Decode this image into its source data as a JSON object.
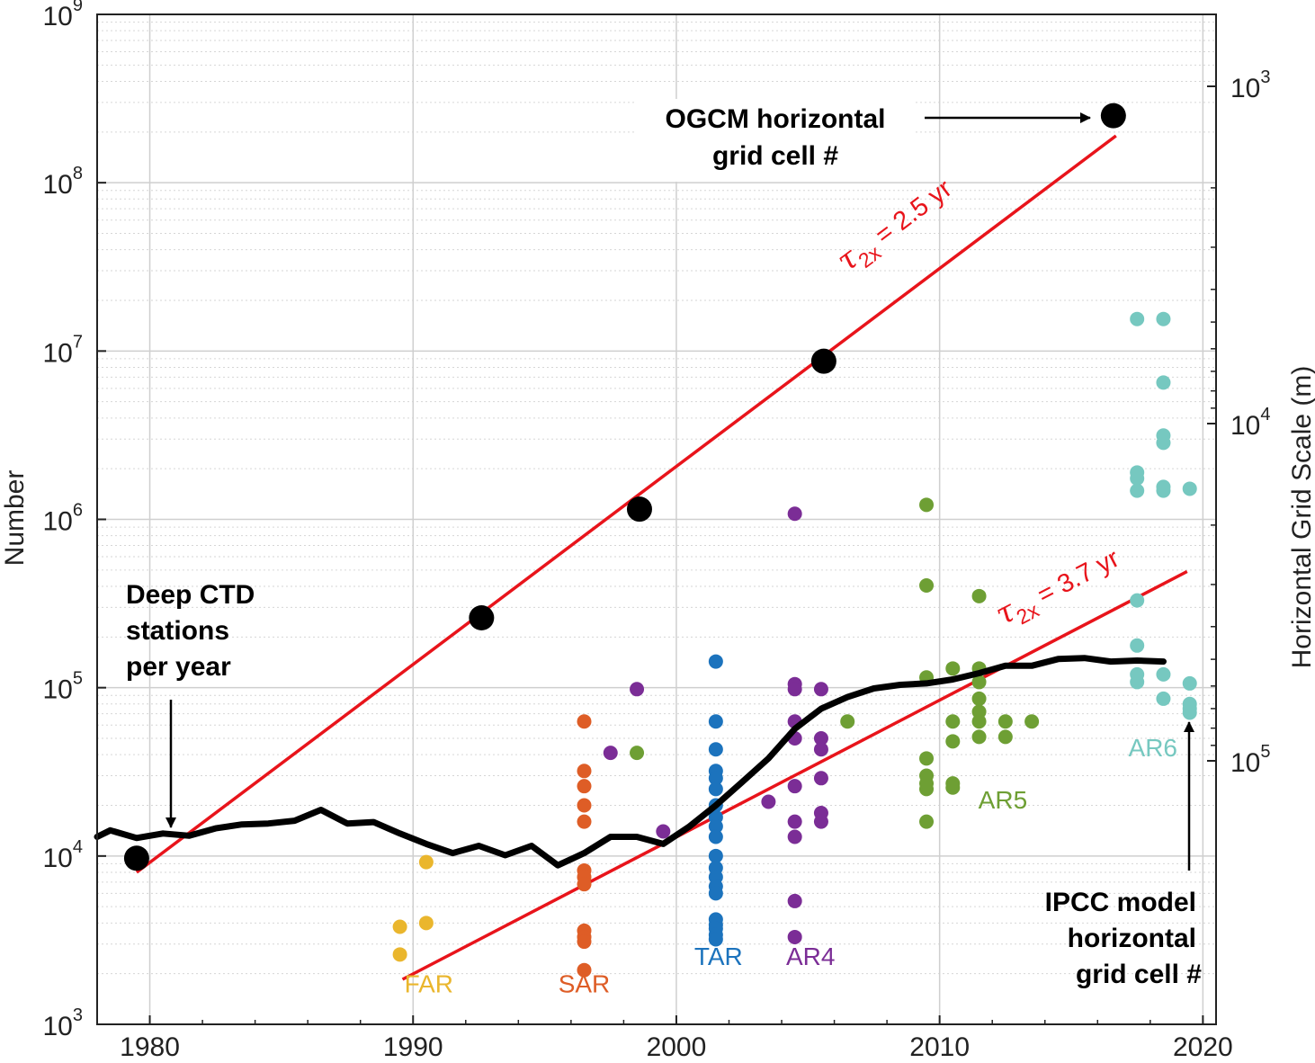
{
  "chart_data": {
    "type": "scatter",
    "xlim": [
      1978,
      2020.5
    ],
    "ylim_exponents": [
      3,
      9
    ],
    "y_scale": "log",
    "ylabel": "Number",
    "ylabel_right": "Horizontal Grid Scale (m)",
    "grid": true,
    "x_ticks": [
      "1980",
      "1990",
      "2000",
      "2010",
      "2020"
    ],
    "y_ticks": [
      {
        "base": "10",
        "exp": "3"
      },
      {
        "base": "10",
        "exp": "4"
      },
      {
        "base": "10",
        "exp": "5"
      },
      {
        "base": "10",
        "exp": "6"
      },
      {
        "base": "10",
        "exp": "7"
      },
      {
        "base": "10",
        "exp": "8"
      },
      {
        "base": "10",
        "exp": "9"
      }
    ],
    "right_ticks": [
      {
        "base": "10",
        "exp": "3",
        "value": 1000
      },
      {
        "base": "10",
        "exp": "4",
        "value": 10000
      },
      {
        "base": "10",
        "exp": "5",
        "value": 100000
      }
    ],
    "ogcm_points": {
      "color": "#000000",
      "points": [
        [
          1979.5,
          9700
        ],
        [
          1992.6,
          260000
        ],
        [
          1998.6,
          1150000
        ],
        [
          2005.6,
          8700000
        ],
        [
          2016.6,
          250000000
        ]
      ]
    },
    "fits": [
      {
        "label_tau": "τ",
        "label_sub": "2x",
        "label_rest": " = 2.5 yr",
        "color": "#e8141b",
        "x": [
          1979.5,
          2016.7
        ],
        "y": [
          8000,
          190000000
        ]
      },
      {
        "label_tau": "τ",
        "label_sub": "2x",
        "label_rest": " = 3.7 yr",
        "color": "#e8141b",
        "x": [
          1989.6,
          2019.4
        ],
        "y": [
          1850,
          490000
        ]
      }
    ],
    "ctd_line": {
      "color": "#000000",
      "x": [
        1978,
        1978.5,
        1979.5,
        1980.5,
        1981.5,
        1982.5,
        1983.5,
        1984.5,
        1985.5,
        1986.5,
        1987.5,
        1988.5,
        1989.5,
        1990.5,
        1991.5,
        1992.5,
        1993.5,
        1994.5,
        1995.5,
        1996.5,
        1997.5,
        1998.5,
        1999.5,
        2000.5,
        2001.5,
        2002.5,
        2003.5,
        2004.5,
        2005.5,
        2006.5,
        2007.5,
        2008.5,
        2009.5,
        2010.5,
        2011.5,
        2012.5,
        2013.5,
        2014.5,
        2015.5,
        2016.5,
        2017.5,
        2018.5
      ],
      "y": [
        13000,
        14200,
        12800,
        13600,
        13200,
        14600,
        15400,
        15600,
        16200,
        18800,
        15600,
        15900,
        13600,
        11800,
        10400,
        11500,
        10100,
        11500,
        8800,
        10400,
        13000,
        13000,
        11800,
        15000,
        20000,
        27500,
        38000,
        57000,
        75000,
        88000,
        99000,
        104000,
        106000,
        112000,
        122000,
        135000,
        135000,
        148000,
        150000,
        143000,
        145000,
        143000
      ]
    },
    "series": [
      {
        "name": "FAR",
        "color": "#eab62d",
        "points": [
          [
            1989.5,
            3800
          ],
          [
            1989.5,
            2600
          ],
          [
            1990.5,
            9200
          ],
          [
            1990.5,
            4000
          ]
        ]
      },
      {
        "name": "SAR",
        "color": "#de5d26",
        "points": [
          [
            1996.5,
            63000
          ],
          [
            1996.5,
            32000
          ],
          [
            1996.5,
            26000
          ],
          [
            1996.5,
            20000
          ],
          [
            1996.5,
            16000
          ],
          [
            1996.5,
            8200
          ],
          [
            1996.5,
            7500
          ],
          [
            1996.5,
            6800
          ],
          [
            1996.5,
            3600
          ],
          [
            1996.5,
            3300
          ],
          [
            1996.5,
            3100
          ],
          [
            1996.5,
            2100
          ]
        ]
      },
      {
        "name": "TAR",
        "color": "#1c73bd",
        "points": [
          [
            2001.5,
            143000
          ],
          [
            2001.5,
            63000
          ],
          [
            2001.5,
            43000
          ],
          [
            2001.5,
            32000
          ],
          [
            2001.5,
            29000
          ],
          [
            2001.5,
            25000
          ],
          [
            2001.5,
            20000
          ],
          [
            2001.5,
            17000
          ],
          [
            2001.5,
            15000
          ],
          [
            2001.5,
            13000
          ],
          [
            2001.5,
            10000
          ],
          [
            2001.5,
            8500
          ],
          [
            2001.5,
            7500
          ],
          [
            2001.5,
            6600
          ],
          [
            2001.5,
            6000
          ],
          [
            2001.5,
            4200
          ],
          [
            2001.5,
            3900
          ],
          [
            2001.5,
            3700
          ],
          [
            2001.5,
            3400
          ],
          [
            2001.5,
            3200
          ]
        ]
      },
      {
        "name": "AR4",
        "color": "#7b2d96",
        "points": [
          [
            1998.5,
            98000
          ],
          [
            1997.5,
            41000
          ],
          [
            1999.5,
            14000
          ],
          [
            2003.5,
            21000
          ],
          [
            2004.5,
            1080000
          ],
          [
            2004.5,
            105000
          ],
          [
            2004.5,
            98000
          ],
          [
            2004.5,
            63000
          ],
          [
            2004.5,
            50000
          ],
          [
            2004.5,
            26000
          ],
          [
            2004.5,
            16000
          ],
          [
            2004.5,
            13000
          ],
          [
            2004.5,
            5400
          ],
          [
            2004.5,
            3300
          ],
          [
            2005.5,
            98000
          ],
          [
            2005.5,
            50000
          ],
          [
            2005.5,
            43000
          ],
          [
            2005.5,
            29000
          ],
          [
            2005.5,
            18000
          ],
          [
            2005.5,
            16000
          ]
        ]
      },
      {
        "name": "AR5",
        "color": "#6e9f34",
        "points": [
          [
            1998.5,
            41000
          ],
          [
            2006.5,
            63000
          ],
          [
            2009.5,
            1220000
          ],
          [
            2009.5,
            405000
          ],
          [
            2009.5,
            115000
          ],
          [
            2009.5,
            38000
          ],
          [
            2009.5,
            30000
          ],
          [
            2009.5,
            27000
          ],
          [
            2009.5,
            25000
          ],
          [
            2009.5,
            16000
          ],
          [
            2010.5,
            130000
          ],
          [
            2010.5,
            63000
          ],
          [
            2010.5,
            48000
          ],
          [
            2010.5,
            27000
          ],
          [
            2010.5,
            25500
          ],
          [
            2011.5,
            350000
          ],
          [
            2011.5,
            130000
          ],
          [
            2011.5,
            108000
          ],
          [
            2011.5,
            86000
          ],
          [
            2011.5,
            72000
          ],
          [
            2011.5,
            63000
          ],
          [
            2011.5,
            51000
          ],
          [
            2012.5,
            63000
          ],
          [
            2012.5,
            51000
          ],
          [
            2013.5,
            63000
          ]
        ]
      },
      {
        "name": "AR6",
        "color": "#76c8c0",
        "points": [
          [
            2017.5,
            15500000
          ],
          [
            2017.5,
            1900000
          ],
          [
            2017.5,
            1750000
          ],
          [
            2017.5,
            1480000
          ],
          [
            2017.5,
            330000
          ],
          [
            2017.5,
            178000
          ],
          [
            2017.5,
            120000
          ],
          [
            2017.5,
            108000
          ],
          [
            2018.5,
            15500000
          ],
          [
            2018.5,
            6500000
          ],
          [
            2018.5,
            3150000
          ],
          [
            2018.5,
            2850000
          ],
          [
            2018.5,
            1560000
          ],
          [
            2018.5,
            1480000
          ],
          [
            2018.5,
            120000
          ],
          [
            2018.5,
            86000
          ],
          [
            2019.5,
            1520000
          ],
          [
            2019.5,
            106000
          ],
          [
            2019.5,
            80000
          ],
          [
            2019.5,
            75000
          ],
          [
            2019.5,
            71000
          ]
        ]
      }
    ],
    "series_labels": [
      {
        "name": "FAR",
        "x": 1990.6,
        "y": 1550
      },
      {
        "name": "SAR",
        "x": 1996.5,
        "y": 1550
      },
      {
        "name": "TAR",
        "x": 2001.6,
        "y": 2250
      },
      {
        "name": "AR4",
        "x": 2005.1,
        "y": 2250
      },
      {
        "name": "AR5",
        "x": 2012.4,
        "y": 19200
      },
      {
        "name": "AR6",
        "x": 2018.1,
        "y": 39000
      }
    ],
    "annotations": {
      "ogcm_line1": "OGCM horizontal",
      "ogcm_line2": "grid cell #",
      "ctd_line1": "Deep CTD",
      "ctd_line2": "stations",
      "ctd_line3": "per year",
      "ipcc_line1": "IPCC model",
      "ipcc_line2": "horizontal",
      "ipcc_line3": "grid cell #"
    }
  }
}
